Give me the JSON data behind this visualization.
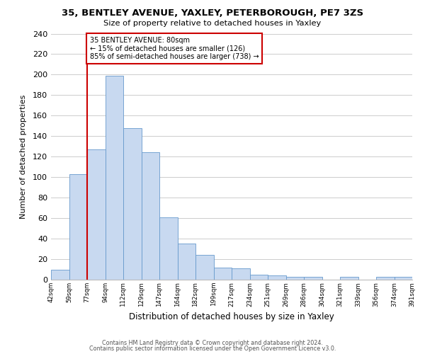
{
  "title": "35, BENTLEY AVENUE, YAXLEY, PETERBOROUGH, PE7 3ZS",
  "subtitle": "Size of property relative to detached houses in Yaxley",
  "xlabel": "Distribution of detached houses by size in Yaxley",
  "ylabel": "Number of detached properties",
  "bin_labels": [
    "42sqm",
    "59sqm",
    "77sqm",
    "94sqm",
    "112sqm",
    "129sqm",
    "147sqm",
    "164sqm",
    "182sqm",
    "199sqm",
    "217sqm",
    "234sqm",
    "251sqm",
    "269sqm",
    "286sqm",
    "304sqm",
    "321sqm",
    "339sqm",
    "356sqm",
    "374sqm",
    "391sqm"
  ],
  "bar_heights": [
    10,
    103,
    127,
    199,
    148,
    124,
    61,
    35,
    24,
    12,
    11,
    5,
    4,
    3,
    3,
    0,
    3,
    0,
    3,
    3
  ],
  "bar_color": "#c8d9f0",
  "bar_edge_color": "#6699cc",
  "vline_x_index": 2,
  "annotation_title": "35 BENTLEY AVENUE: 80sqm",
  "annotation_line1": "← 15% of detached houses are smaller (126)",
  "annotation_line2": "85% of semi-detached houses are larger (738) →",
  "vline_color": "#cc0000",
  "ylim": [
    0,
    240
  ],
  "yticks": [
    0,
    20,
    40,
    60,
    80,
    100,
    120,
    140,
    160,
    180,
    200,
    220,
    240
  ],
  "footnote1": "Contains HM Land Registry data © Crown copyright and database right 2024.",
  "footnote2": "Contains public sector information licensed under the Open Government Licence v3.0.",
  "background_color": "#ffffff",
  "grid_color": "#cccccc"
}
